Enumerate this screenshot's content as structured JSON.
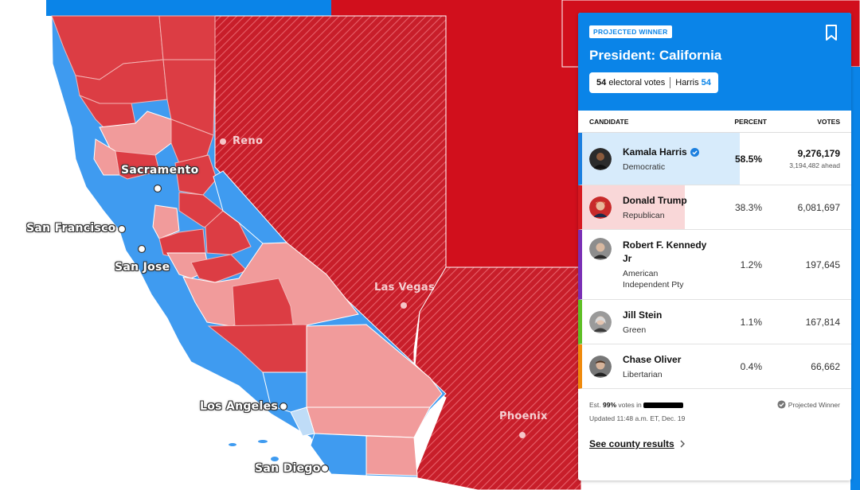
{
  "map": {
    "cities": [
      "Reno",
      "Sacramento",
      "San Francisco",
      "San Jose",
      "Las Vegas",
      "Phoenix",
      "Los Angeles",
      "San Diego"
    ],
    "colors": {
      "dem": "#3f9bf0",
      "rep_strong": "#dc3d44",
      "rep_light": "#f19b9b",
      "rep_other_state": "#d10f1c",
      "dem_other_state": "#0a84e8",
      "hatch_light": "#e55560"
    }
  },
  "panel": {
    "badge": "PROJECTED WINNER",
    "title": "President: California",
    "ev_count": "54",
    "ev_label": "electoral votes",
    "ev_winner": "Harris",
    "ev_winner_count": "54",
    "bookmark_icon": "bookmark-icon",
    "headers": {
      "candidate": "CANDIDATE",
      "percent": "PERCENT",
      "votes": "VOTES"
    },
    "candidates": [
      {
        "name": "Kamala Harris",
        "party": "Democratic",
        "percent": "58.5%",
        "percent_value": 58.5,
        "votes": "9,276,179",
        "ahead": "3,194,482 ahead",
        "color": "#1b7fdf",
        "fill": "#d7ebfb",
        "winner": true
      },
      {
        "name": "Donald Trump",
        "party": "Republican",
        "percent": "38.3%",
        "percent_value": 38.3,
        "votes": "6,081,697",
        "color": "#d71920",
        "fill": "#f9d7d8"
      },
      {
        "name": "Robert F. Kennedy Jr",
        "party": "American Independent Pty",
        "percent": "1.2%",
        "percent_value": 1.2,
        "votes": "197,645",
        "color": "#7a2fb5"
      },
      {
        "name": "Jill Stein",
        "party": "Green",
        "percent": "1.1%",
        "percent_value": 1.1,
        "votes": "167,814",
        "color": "#5fbf26"
      },
      {
        "name": "Chase Oliver",
        "party": "Libertarian",
        "percent": "0.4%",
        "percent_value": 0.4,
        "votes": "66,662",
        "color": "#f08a0c"
      }
    ],
    "footer": {
      "est_prefix": "Est.",
      "est_pct": "99%",
      "est_suffix": "votes in",
      "projected_winner_legend": "Projected Winner",
      "updated": "Updated 11:48 a.m. ET, Dec. 19",
      "county_link": "See county results"
    }
  }
}
